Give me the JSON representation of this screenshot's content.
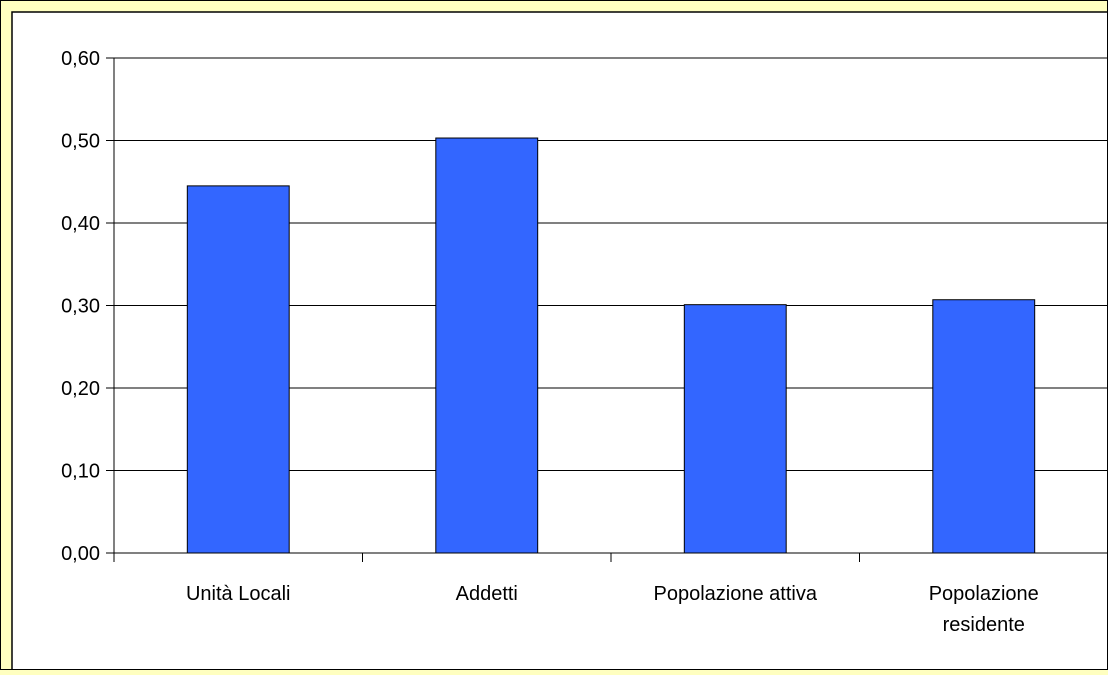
{
  "chart_data": {
    "type": "bar",
    "categories": [
      [
        "Unità Locali"
      ],
      [
        "Addetti"
      ],
      [
        "Popolazione attiva"
      ],
      [
        "Popolazione",
        "residente"
      ]
    ],
    "values": [
      0.445,
      0.503,
      0.301,
      0.307
    ],
    "yticks": [
      "0,00",
      "0,10",
      "0,20",
      "0,30",
      "0,40",
      "0,50",
      "0,60"
    ],
    "ylim": [
      0,
      0.6
    ],
    "grid": true,
    "legend": "none",
    "colors": {
      "bar": "#3366ff",
      "background": "#ffffc0",
      "plot_background": "#ffffff",
      "border": "#000000"
    }
  }
}
